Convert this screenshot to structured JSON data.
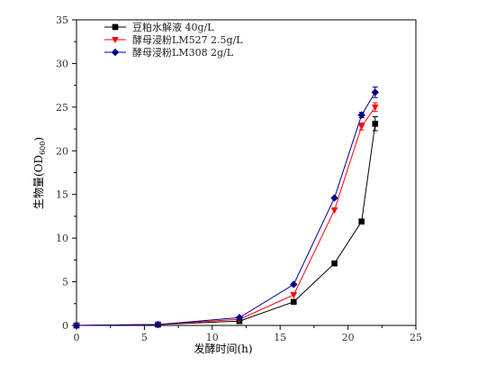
{
  "chart_data": {
    "type": "line",
    "xlabel": "发酵时间(h)",
    "ylabel": "生物量(OD600)",
    "ylabel_main": "生物量(OD",
    "ylabel_sub": "600",
    "ylabel_end": ")",
    "xlim": [
      0,
      25
    ],
    "ylim": [
      0,
      35
    ],
    "xticks": [
      0,
      5,
      10,
      15,
      20,
      25
    ],
    "yticks": [
      0,
      5,
      10,
      15,
      20,
      25,
      30,
      35
    ],
    "x": [
      0,
      6,
      12,
      16,
      19,
      21,
      22
    ],
    "grid": false,
    "legend_position": "top-left",
    "series": [
      {
        "name": "豆粕水解液 40g/L",
        "color": "#000000",
        "marker": "square",
        "values": [
          0,
          0.1,
          0.5,
          2.7,
          7.1,
          11.9,
          23.1
        ],
        "error": [
          0,
          0,
          0,
          0,
          0,
          0,
          0.8
        ]
      },
      {
        "name": "酵母浸粉LM527 2.5g/L",
        "color": "#ff0000",
        "marker": "triangle-down",
        "values": [
          0,
          0.1,
          0.7,
          3.5,
          13.2,
          22.8,
          25.0
        ],
        "error": [
          0,
          0,
          0,
          0,
          0,
          0.4,
          0.5
        ]
      },
      {
        "name": "酵母浸粉LM308 2g/L",
        "color": "#00008b",
        "marker": "diamond",
        "values": [
          0,
          0.1,
          0.9,
          4.7,
          14.6,
          24.1,
          26.7
        ],
        "error": [
          0,
          0,
          0,
          0,
          0,
          0.3,
          0.6
        ]
      }
    ]
  }
}
